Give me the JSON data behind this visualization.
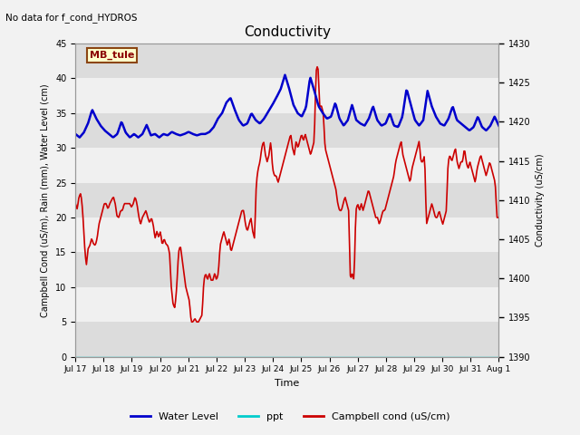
{
  "title": "Conductivity",
  "top_left_text": "No data for f_cond_HYDROS",
  "annotation_text": "MB_tule",
  "ylabel_left": "Campbell Cond (uS/m), Rain (mm), Water Level (cm)",
  "ylabel_right": "Conductivity (uS/cm)",
  "xlabel": "Time",
  "ylim_left": [
    0,
    45
  ],
  "ylim_right": [
    1390,
    1430
  ],
  "yticks_left": [
    0,
    5,
    10,
    15,
    20,
    25,
    30,
    35,
    40,
    45
  ],
  "yticks_right": [
    1390,
    1395,
    1400,
    1405,
    1410,
    1415,
    1420,
    1425,
    1430
  ],
  "bg_color": "#f2f2f2",
  "plot_bg_color": "#ffffff",
  "band_dark": "#dcdcdc",
  "band_light": "#f0f0f0",
  "water_level_color": "#0000cc",
  "ppt_color": "#00cccc",
  "campbell_color": "#cc0000",
  "legend_labels": [
    "Water Level",
    "ppt",
    "Campbell cond (uS/cm)"
  ],
  "x_tick_labels": [
    "Jul 17",
    "Jul 18",
    "Jul 19",
    "Jul 20",
    "Jul 21",
    "Jul 22",
    "Jul 23",
    "Jul 24",
    "Jul 25",
    "Jul 26",
    "Jul 27",
    "Jul 28",
    "Jul 29",
    "Jul 30",
    "Jul 31",
    "Aug 1"
  ],
  "water_level_data": [
    32.0,
    31.5,
    32.2,
    33.5,
    35.5,
    34.2,
    33.2,
    32.5,
    32.0,
    31.5,
    32.0,
    33.8,
    32.2,
    31.5,
    32.0,
    31.5,
    32.0,
    33.3,
    31.8,
    32.0,
    31.5,
    32.0,
    31.8,
    32.3,
    32.0,
    31.8,
    32.0,
    32.3,
    32.0,
    31.8,
    32.0,
    32.0,
    32.3,
    33.0,
    34.2,
    35.0,
    36.5,
    37.2,
    35.5,
    34.0,
    33.2,
    33.5,
    35.0,
    34.0,
    33.5,
    34.2,
    35.2,
    36.2,
    37.3,
    38.5,
    40.5,
    38.5,
    36.2,
    35.0,
    34.5,
    35.8,
    40.2,
    38.2,
    36.0,
    35.0,
    34.2,
    34.5,
    36.5,
    34.2,
    33.2,
    34.0,
    36.2,
    34.0,
    33.5,
    33.2,
    34.2,
    36.0,
    34.0,
    33.2,
    33.5,
    35.0,
    33.2,
    33.0,
    34.5,
    38.5,
    36.2,
    34.0,
    33.2,
    34.0,
    38.2,
    36.0,
    34.5,
    33.5,
    33.2,
    34.2,
    36.0,
    34.0,
    33.5,
    33.0,
    32.5,
    33.0,
    34.5,
    33.0,
    32.5,
    33.2,
    34.5,
    33.2
  ],
  "campbell_data": [
    22.0,
    21.2,
    23.0,
    23.5,
    21.0,
    16.2,
    13.0,
    15.5,
    16.0,
    17.0,
    16.2,
    16.0,
    17.0,
    19.0,
    20.0,
    21.0,
    22.0,
    22.0,
    21.2,
    22.0,
    22.5,
    23.0,
    22.0,
    20.2,
    20.0,
    21.0,
    21.0,
    22.0,
    22.0,
    22.0,
    22.0,
    21.5,
    22.0,
    23.0,
    22.0,
    20.2,
    19.0,
    20.0,
    20.5,
    21.0,
    20.0,
    19.2,
    20.0,
    19.0,
    17.0,
    18.0,
    17.2,
    18.0,
    16.0,
    17.0,
    16.2,
    16.0,
    15.0,
    10.0,
    7.5,
    7.0,
    10.0,
    15.0,
    16.0,
    14.0,
    12.0,
    10.0,
    9.0,
    8.0,
    5.0,
    5.0,
    5.5,
    5.0,
    5.0,
    5.5,
    6.0,
    11.0,
    12.0,
    11.0,
    12.0,
    11.0,
    11.0,
    12.0,
    11.0,
    12.0,
    16.0,
    17.0,
    18.0,
    17.0,
    16.0,
    17.0,
    15.0,
    16.0,
    17.0,
    18.0,
    19.0,
    20.0,
    21.0,
    21.0,
    19.0,
    18.0,
    19.0,
    20.0,
    18.0,
    17.0,
    25.0,
    27.0,
    28.0,
    30.0,
    31.0,
    29.0,
    28.0,
    29.0,
    31.0,
    27.0,
    26.0,
    26.0,
    25.0,
    26.0,
    27.0,
    28.0,
    29.0,
    30.0,
    31.0,
    32.0,
    30.0,
    29.0,
    31.0,
    30.0,
    31.0,
    32.0,
    31.0,
    32.0,
    31.0,
    30.0,
    29.0,
    30.0,
    31.0,
    41.0,
    42.0,
    36.0,
    36.0,
    35.0,
    30.0,
    29.0,
    28.0,
    27.0,
    26.0,
    25.0,
    24.0,
    22.0,
    21.0,
    21.0,
    22.0,
    23.0,
    22.0,
    21.0,
    11.0,
    12.0,
    11.0,
    21.0,
    22.0,
    21.0,
    22.0,
    21.0,
    22.0,
    23.0,
    24.0,
    23.0,
    22.0,
    21.0,
    20.0,
    20.0,
    19.0,
    20.0,
    21.0,
    21.0,
    22.0,
    23.0,
    24.0,
    25.0,
    26.0,
    28.0,
    29.0,
    30.0,
    31.0,
    29.0,
    28.0,
    27.0,
    26.0,
    25.0,
    27.0,
    28.0,
    29.0,
    30.0,
    31.0,
    28.0,
    28.0,
    29.0,
    19.0,
    20.0,
    21.0,
    22.0,
    21.0,
    20.0,
    20.0,
    21.0,
    20.0,
    19.0,
    20.0,
    21.0,
    28.0,
    29.0,
    28.0,
    29.0,
    30.0,
    28.0,
    27.0,
    28.0,
    28.0,
    30.0,
    28.0,
    27.0,
    28.0,
    27.0,
    26.0,
    25.0,
    27.0,
    28.0,
    29.0,
    28.0,
    27.0,
    26.0,
    27.0,
    28.0,
    27.0,
    26.0,
    25.0,
    20.0,
    20.0
  ]
}
